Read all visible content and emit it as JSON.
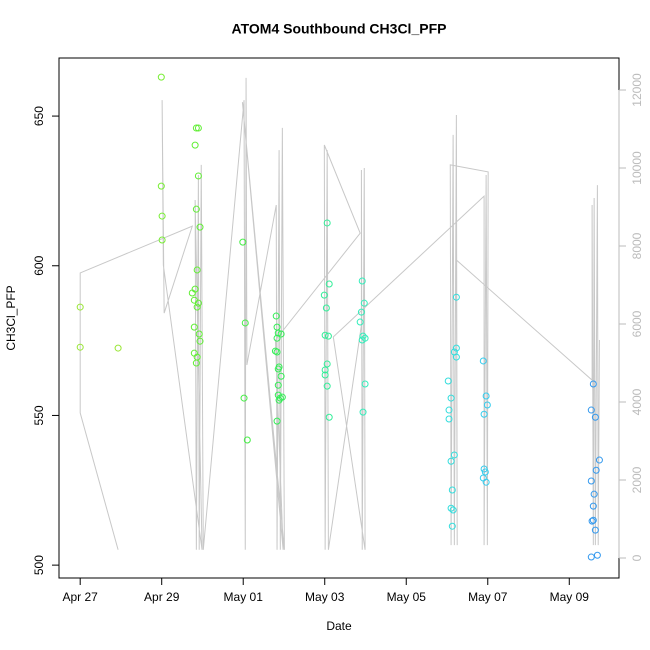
{
  "chart_data": {
    "type": "scatter",
    "title": "ATOM4 Southbound CH3Cl_PFP",
    "xlabel": "Date",
    "ylabel": "CH3Cl_PFP",
    "xlim": [
      -0.52,
      13.22
    ],
    "xticks": [
      {
        "value": 0,
        "label": "Apr 27"
      },
      {
        "value": 2,
        "label": "Apr 29"
      },
      {
        "value": 4,
        "label": "May 01"
      },
      {
        "value": 6,
        "label": "May 03"
      },
      {
        "value": 8,
        "label": "May 05"
      },
      {
        "value": 10,
        "label": "May 07"
      },
      {
        "value": 12,
        "label": "May 09"
      }
    ],
    "ylim": [
      495.7,
      669.4
    ],
    "yticks": [
      500,
      550,
      600,
      650
    ],
    "y2lim": [
      -513,
      12821
    ],
    "y2ticks": [
      0,
      2000,
      4000,
      6000,
      8000,
      10000,
      12000
    ],
    "series": [
      {
        "type": "line",
        "axis": "y2",
        "color": "#c8c8c8",
        "x": [
          0.93,
          0,
          0,
          2.75,
          2.06,
          2.01,
          2.04,
          2.99,
          2.82,
          2.85,
          2.9,
          2.92,
          2.97,
          3.02,
          4.02,
          4.05,
          4.07,
          4.09,
          4.81,
          4.83,
          4.88,
          4.91,
          4.96,
          5.01,
          3.98,
          4.98,
          4.79,
          6.87,
          5.99,
          6.01,
          6.06,
          6.09,
          6.9,
          6.9,
          6.92,
          6.97,
          6.99,
          6.21,
          9.91,
          9.91,
          9.96,
          9.99,
          10.01,
          9.08,
          9.1,
          9.15,
          9.18,
          9.23,
          9.25,
          9.23,
          12.56,
          12.56,
          12.59,
          12.61,
          12.64,
          12.69,
          12.71,
          12.74
        ],
        "values": [
          210,
          3720,
          7310,
          8510,
          6280,
          11740,
          7510,
          210,
          9180,
          210,
          9820,
          210,
          10080,
          210,
          11740,
          210,
          12310,
          4950,
          9050,
          210,
          10460,
          210,
          11030,
          210,
          11690,
          210,
          5590,
          8330,
          10590,
          210,
          10460,
          210,
          5970,
          9950,
          210,
          10000,
          210,
          5670,
          9280,
          330,
          9820,
          330,
          9900,
          10080,
          330,
          10850,
          330,
          11360,
          330,
          7640,
          4560,
          9050,
          330,
          9230,
          330,
          9560,
          330,
          5590
        ]
      },
      {
        "color": "#99e635",
        "x": [
          0,
          0,
          0.93
        ],
        "values": [
          586.2,
          572.8,
          572.5
        ]
      },
      {
        "color": "#77ee33",
        "x": [
          1.99,
          1.99,
          2.01,
          2.01
        ],
        "values": [
          663.0,
          626.6,
          616.6,
          608.6
        ]
      },
      {
        "color": "#5fee33",
        "x": [
          2.82,
          2.85,
          2.9,
          2.9,
          2.85,
          2.94,
          2.87,
          2.75,
          2.82,
          2.9,
          2.87,
          2.8,
          2.8,
          2.92,
          2.94,
          2.8,
          2.87,
          2.85
        ],
        "values": [
          640.3,
          646.0,
          646.0,
          630.0,
          618.9,
          612.9,
          598.6,
          590.9,
          592.2,
          587.5,
          586.2,
          588.5,
          579.5,
          577.2,
          574.8,
          570.8,
          569.5,
          567.5
        ]
      },
      {
        "color": "#44ee44",
        "x": [
          3.99,
          4.05,
          4.02,
          4.1
        ],
        "values": [
          607.9,
          580.9,
          555.8,
          541.8
        ]
      },
      {
        "color": "#33ee55",
        "x": [
          4.81,
          4.83,
          4.86,
          4.93,
          4.83,
          4.79,
          4.83,
          4.88,
          4.86,
          4.93,
          4.86,
          4.86,
          4.96,
          4.91,
          4.88,
          4.83
        ],
        "values": [
          583.2,
          579.5,
          577.5,
          577.2,
          575.8,
          571.5,
          571.2,
          566.2,
          565.5,
          563.1,
          560.1,
          556.8,
          556.1,
          555.8,
          555.1,
          548.1
        ]
      },
      {
        "color": "#33ee99",
        "x": [
          6.06,
          5.99,
          6.11,
          6.04,
          6.01,
          6.09,
          6.01,
          6.06,
          6.01,
          6.06,
          6.11
        ],
        "values": [
          614.3,
          590.2,
          593.9,
          585.9,
          576.8,
          576.5,
          565.2,
          567.2,
          563.5,
          559.8,
          549.4
        ]
      },
      {
        "color": "#33eebb",
        "x": [
          6.92,
          6.97,
          6.9,
          6.87,
          6.94,
          6.92,
          6.99,
          6.99,
          6.94
        ],
        "values": [
          594.9,
          587.5,
          584.5,
          581.2,
          576.5,
          575.2,
          575.8,
          560.5,
          551.1
        ]
      },
      {
        "color": "#33dddd",
        "x": [
          9.03,
          9.05,
          9.05,
          9.1,
          9.1,
          9.13,
          9.18,
          9.23,
          9.23,
          9.18,
          9.23,
          9.1,
          9.15,
          9.13
        ],
        "values": [
          561.5,
          551.8,
          548.8,
          555.8,
          534.7,
          525.1,
          536.8,
          589.5,
          572.5,
          571.2,
          569.5,
          519.0,
          518.4,
          513.0
        ]
      },
      {
        "color": "#33ccee",
        "x": [
          9.89,
          9.96,
          9.99,
          9.91,
          9.91,
          9.94,
          9.89,
          9.96
        ],
        "values": [
          568.2,
          556.5,
          553.5,
          550.4,
          532.1,
          531.1,
          529.1,
          527.7
        ]
      },
      {
        "color": "#3399ee",
        "x": [
          12.59,
          12.54,
          12.64,
          12.74,
          12.66,
          12.54,
          12.61,
          12.59,
          12.59,
          12.56,
          12.64,
          12.54,
          12.69
        ],
        "values": [
          560.5,
          551.8,
          549.4,
          535.1,
          531.7,
          528.1,
          523.7,
          519.7,
          515.0,
          514.7,
          511.7,
          502.7,
          503.3
        ]
      }
    ]
  }
}
